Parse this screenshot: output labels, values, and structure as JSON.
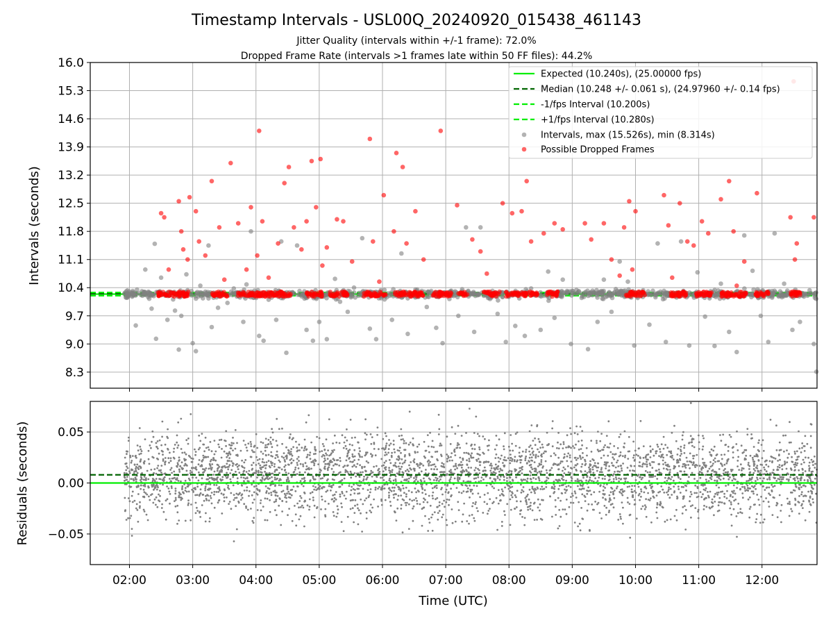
{
  "chart_data": [
    {
      "type": "scatter",
      "title": "Timestamp Intervals - USL00Q_20240920_015438_461143",
      "subtitle_lines": [
        "Jitter Quality (intervals within +/-1 frame): 72.0%",
        "Dropped Frame Rate (intervals >1 frames late within 50 FF files): 44.2%"
      ],
      "xlabel": "",
      "ylabel": "Intervals (seconds)",
      "x_ticks": [
        "02:00",
        "03:00",
        "04:00",
        "05:00",
        "06:00",
        "07:00",
        "08:00",
        "09:00",
        "10:00",
        "11:00",
        "12:00"
      ],
      "x_range_hours": [
        1.38,
        12.87
      ],
      "y_ticks": [
        "8.3",
        "9.0",
        "9.7",
        "10.4",
        "11.1",
        "11.8",
        "12.5",
        "13.2",
        "13.9",
        "14.6",
        "15.3",
        "16.0"
      ],
      "ylim": [
        7.9,
        16.0
      ],
      "grid": true,
      "legend_position": "top-right",
      "reference_lines": [
        {
          "label": "Expected (10.240s), (25.00000 fps)",
          "y": 10.24,
          "color": "#00ee00",
          "style": "solid"
        },
        {
          "label": "Median (10.248 +/- 0.061 s), (24.97960 +/- 0.14 fps)",
          "y": 10.248,
          "color": "#006400",
          "style": "dashed"
        },
        {
          "label": "-1/fps Interval (10.200s)",
          "y": 10.2,
          "color": "#00ee00",
          "style": "dashed"
        },
        {
          "label": "+1/fps Interval (10.280s)",
          "y": 10.28,
          "color": "#00ee00",
          "style": "dashed"
        }
      ],
      "series": [
        {
          "name": "Intervals, max (15.526s), min (8.314s)",
          "color": "#808080",
          "points": [
            [
              1.92,
              10.25
            ],
            [
              1.95,
              10.31
            ],
            [
              1.98,
              10.19
            ],
            [
              2.05,
              10.28
            ],
            [
              2.1,
              9.46
            ],
            [
              2.12,
              10.35
            ],
            [
              2.18,
              10.22
            ],
            [
              2.25,
              10.85
            ],
            [
              2.3,
              10.3
            ],
            [
              2.35,
              9.88
            ],
            [
              2.4,
              11.49
            ],
            [
              2.42,
              9.13
            ],
            [
              2.5,
              10.65
            ],
            [
              2.6,
              9.6
            ],
            [
              2.72,
              9.83
            ],
            [
              2.78,
              8.86
            ],
            [
              2.82,
              9.7
            ],
            [
              2.9,
              10.73
            ],
            [
              3.0,
              9.02
            ],
            [
              3.05,
              8.82
            ],
            [
              3.12,
              10.45
            ],
            [
              3.2,
              10.3
            ],
            [
              3.25,
              11.45
            ],
            [
              3.3,
              9.42
            ],
            [
              3.4,
              9.9
            ],
            [
              3.55,
              10.02
            ],
            [
              3.65,
              10.38
            ],
            [
              3.8,
              9.55
            ],
            [
              3.85,
              10.48
            ],
            [
              3.92,
              11.8
            ],
            [
              4.05,
              9.2
            ],
            [
              4.12,
              9.08
            ],
            [
              4.2,
              10.1
            ],
            [
              4.32,
              9.6
            ],
            [
              4.4,
              11.55
            ],
            [
              4.48,
              8.78
            ],
            [
              4.55,
              10.22
            ],
            [
              4.65,
              11.45
            ],
            [
              4.8,
              9.35
            ],
            [
              4.9,
              9.08
            ],
            [
              5.0,
              9.55
            ],
            [
              5.12,
              9.12
            ],
            [
              5.25,
              10.62
            ],
            [
              5.33,
              10.05
            ],
            [
              5.45,
              9.8
            ],
            [
              5.55,
              10.4
            ],
            [
              5.68,
              11.63
            ],
            [
              5.8,
              9.38
            ],
            [
              5.9,
              9.12
            ],
            [
              6.05,
              10.2
            ],
            [
              6.15,
              9.6
            ],
            [
              6.3,
              11.25
            ],
            [
              6.4,
              9.25
            ],
            [
              6.55,
              10.35
            ],
            [
              6.7,
              9.92
            ],
            [
              6.85,
              9.4
            ],
            [
              6.95,
              9.02
            ],
            [
              7.08,
              10.3
            ],
            [
              7.2,
              9.7
            ],
            [
              7.32,
              11.9
            ],
            [
              7.45,
              9.3
            ],
            [
              7.55,
              11.9
            ],
            [
              7.7,
              10.12
            ],
            [
              7.82,
              9.75
            ],
            [
              7.95,
              9.05
            ],
            [
              8.1,
              9.45
            ],
            [
              8.25,
              9.2
            ],
            [
              8.35,
              10.38
            ],
            [
              8.5,
              9.35
            ],
            [
              8.62,
              10.8
            ],
            [
              8.72,
              9.65
            ],
            [
              8.85,
              10.6
            ],
            [
              8.98,
              9.0
            ],
            [
              9.1,
              10.3
            ],
            [
              9.25,
              8.87
            ],
            [
              9.4,
              9.55
            ],
            [
              9.5,
              10.6
            ],
            [
              9.62,
              9.8
            ],
            [
              9.75,
              11.05
            ],
            [
              9.88,
              10.55
            ],
            [
              9.98,
              8.96
            ],
            [
              10.08,
              10.25
            ],
            [
              10.22,
              9.48
            ],
            [
              10.35,
              11.5
            ],
            [
              10.48,
              9.05
            ],
            [
              10.6,
              10.2
            ],
            [
              10.72,
              11.55
            ],
            [
              10.85,
              8.96
            ],
            [
              10.98,
              10.78
            ],
            [
              11.1,
              9.68
            ],
            [
              11.25,
              8.95
            ],
            [
              11.35,
              10.5
            ],
            [
              11.48,
              9.3
            ],
            [
              11.6,
              8.8
            ],
            [
              11.72,
              11.7
            ],
            [
              11.85,
              10.82
            ],
            [
              11.98,
              9.7
            ],
            [
              12.1,
              9.05
            ],
            [
              12.2,
              11.75
            ],
            [
              12.35,
              10.5
            ],
            [
              12.48,
              9.35
            ],
            [
              12.6,
              9.55
            ],
            [
              12.72,
              10.2
            ],
            [
              12.82,
              9.0
            ],
            [
              12.86,
              8.31
            ]
          ]
        },
        {
          "name": "Possible Dropped Frames",
          "color": "#ff0000",
          "points": [
            [
              2.5,
              12.25
            ],
            [
              2.55,
              12.15
            ],
            [
              2.62,
              10.85
            ],
            [
              2.78,
              12.55
            ],
            [
              2.82,
              11.8
            ],
            [
              2.85,
              11.35
            ],
            [
              2.92,
              11.1
            ],
            [
              2.95,
              12.65
            ],
            [
              3.05,
              12.3
            ],
            [
              3.1,
              11.55
            ],
            [
              3.2,
              11.2
            ],
            [
              3.3,
              13.05
            ],
            [
              3.42,
              11.9
            ],
            [
              3.5,
              10.6
            ],
            [
              3.6,
              13.5
            ],
            [
              3.72,
              12.0
            ],
            [
              3.85,
              10.85
            ],
            [
              3.92,
              12.4
            ],
            [
              4.02,
              11.2
            ],
            [
              4.05,
              14.3
            ],
            [
              4.1,
              12.05
            ],
            [
              4.2,
              10.65
            ],
            [
              4.35,
              11.5
            ],
            [
              4.45,
              13.0
            ],
            [
              4.52,
              13.4
            ],
            [
              4.6,
              11.9
            ],
            [
              4.72,
              11.35
            ],
            [
              4.8,
              12.05
            ],
            [
              4.88,
              13.55
            ],
            [
              4.95,
              12.4
            ],
            [
              5.02,
              13.6
            ],
            [
              5.05,
              10.95
            ],
            [
              5.12,
              11.4
            ],
            [
              5.28,
              12.1
            ],
            [
              5.38,
              12.05
            ],
            [
              5.52,
              11.05
            ],
            [
              5.8,
              14.1
            ],
            [
              5.85,
              11.55
            ],
            [
              5.95,
              10.55
            ],
            [
              6.02,
              12.7
            ],
            [
              6.18,
              11.8
            ],
            [
              6.22,
              13.75
            ],
            [
              6.32,
              13.4
            ],
            [
              6.38,
              11.5
            ],
            [
              6.52,
              12.3
            ],
            [
              6.65,
              11.1
            ],
            [
              6.92,
              14.3
            ],
            [
              7.18,
              12.45
            ],
            [
              7.42,
              11.6
            ],
            [
              7.55,
              11.3
            ],
            [
              7.65,
              10.75
            ],
            [
              7.9,
              12.5
            ],
            [
              8.05,
              12.25
            ],
            [
              8.2,
              12.3
            ],
            [
              8.28,
              13.05
            ],
            [
              8.35,
              11.55
            ],
            [
              8.55,
              11.75
            ],
            [
              8.72,
              12.0
            ],
            [
              8.85,
              11.85
            ],
            [
              9.2,
              12.0
            ],
            [
              9.3,
              11.6
            ],
            [
              9.5,
              12.0
            ],
            [
              9.62,
              11.1
            ],
            [
              9.75,
              10.7
            ],
            [
              9.82,
              11.9
            ],
            [
              9.9,
              12.55
            ],
            [
              9.95,
              10.85
            ],
            [
              10.0,
              12.3
            ],
            [
              10.45,
              12.7
            ],
            [
              10.52,
              11.95
            ],
            [
              10.58,
              10.65
            ],
            [
              10.7,
              12.5
            ],
            [
              10.82,
              11.55
            ],
            [
              10.92,
              11.45
            ],
            [
              11.05,
              12.05
            ],
            [
              11.15,
              11.75
            ],
            [
              11.35,
              12.6
            ],
            [
              11.48,
              13.05
            ],
            [
              11.55,
              11.8
            ],
            [
              11.6,
              10.45
            ],
            [
              11.72,
              11.05
            ],
            [
              11.92,
              12.75
            ],
            [
              12.45,
              12.15
            ],
            [
              12.5,
              15.53
            ],
            [
              12.52,
              11.1
            ],
            [
              12.55,
              11.5
            ],
            [
              12.82,
              12.15
            ]
          ]
        }
      ]
    },
    {
      "type": "scatter",
      "xlabel": "Time (UTC)",
      "ylabel": "Residuals (seconds)",
      "x_ticks": [
        "02:00",
        "03:00",
        "04:00",
        "05:00",
        "06:00",
        "07:00",
        "08:00",
        "09:00",
        "10:00",
        "11:00",
        "12:00"
      ],
      "x_range_hours": [
        1.38,
        12.87
      ],
      "y_ticks": [
        "−0.05",
        "0.00",
        "0.05"
      ],
      "ylim": [
        -0.08,
        0.08
      ],
      "grid": true,
      "reference_lines": [
        {
          "y": 0.0,
          "color": "#00ee00",
          "style": "solid"
        },
        {
          "y": 0.008,
          "color": "#006400",
          "style": "dashed"
        }
      ],
      "series": [
        {
          "color": "#808080",
          "x_start_hours": 1.92,
          "x_end_hours": 12.87,
          "point_count": 3800,
          "spread": [
            -0.08,
            0.08
          ]
        }
      ]
    }
  ]
}
